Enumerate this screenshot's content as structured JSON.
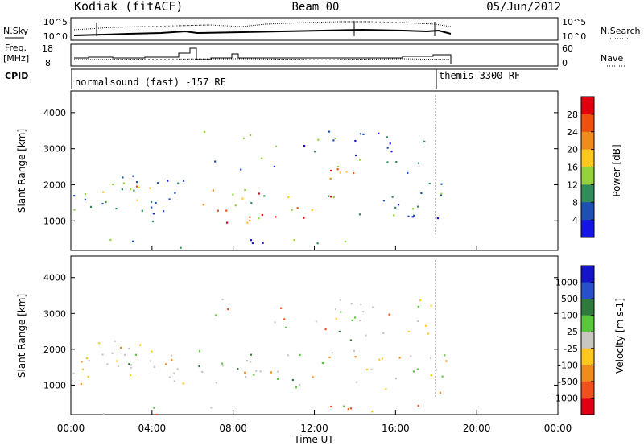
{
  "header": {
    "station": "Kodiak (fitACF)",
    "beam": "Beam 00",
    "date": "05/Jun/2012"
  },
  "strip_panels": {
    "nsky": {
      "label": "N.Sky",
      "right_label": "N.Search",
      "ticks_left": [
        "10^5",
        "10^0"
      ],
      "ticks_right": [
        "10^5",
        "10^0"
      ]
    },
    "freq": {
      "label_line1": "Freq.",
      "label_line2": "[MHz]",
      "right_label": "Nave",
      "ticks_left": [
        "18",
        "8"
      ],
      "ticks_right": [
        "60",
        "0"
      ]
    },
    "cpid": {
      "label": "CPID",
      "modes": [
        {
          "name": "normalsound (fast) -157 RF",
          "start": "00:00"
        },
        {
          "name": "themis 3300 RF",
          "start": "17:58"
        }
      ]
    }
  },
  "chart_data": [
    {
      "type": "heatmap",
      "name": "power",
      "xlabel": "",
      "ylabel": "Slant Range [km]",
      "x_range_hours": [
        0,
        24
      ],
      "ylim": [
        180,
        4600
      ],
      "yticks": [
        1000,
        2000,
        3000,
        4000
      ],
      "colorbar": {
        "label": "Power [dB]",
        "ticks": [
          "28",
          "24",
          "20",
          "16",
          "12",
          "8",
          "4"
        ],
        "colors": [
          "#e0000d",
          "#f0500d",
          "#f08c1e",
          "#ffc81e",
          "#96d23c",
          "#328c5a",
          "#1e50b4",
          "#1414e6"
        ]
      },
      "data_end_time": "18:45"
    },
    {
      "type": "heatmap",
      "name": "velocity",
      "xlabel": "Time UT",
      "ylabel": "Slant Range [km]",
      "x_range_hours": [
        0,
        24
      ],
      "ylim": [
        180,
        4600
      ],
      "yticks": [
        1000,
        2000,
        3000,
        4000
      ],
      "xticks": [
        "00:00",
        "04:00",
        "08:00",
        "12:00",
        "16:00",
        "20:00",
        "00:00"
      ],
      "colorbar": {
        "label": "Velocity [m s-1]",
        "ticks": [
          "1000",
          "500",
          "100",
          "25",
          "-25",
          "-100",
          "-500",
          "-1000"
        ],
        "colors": [
          "#1414c8",
          "#2850c8",
          "#2d7a3c",
          "#5ac83c",
          "#c8c8c0",
          "#ffc81e",
          "#f08c1e",
          "#f0501e",
          "#e00014"
        ]
      },
      "data_end_time": "18:45"
    }
  ]
}
